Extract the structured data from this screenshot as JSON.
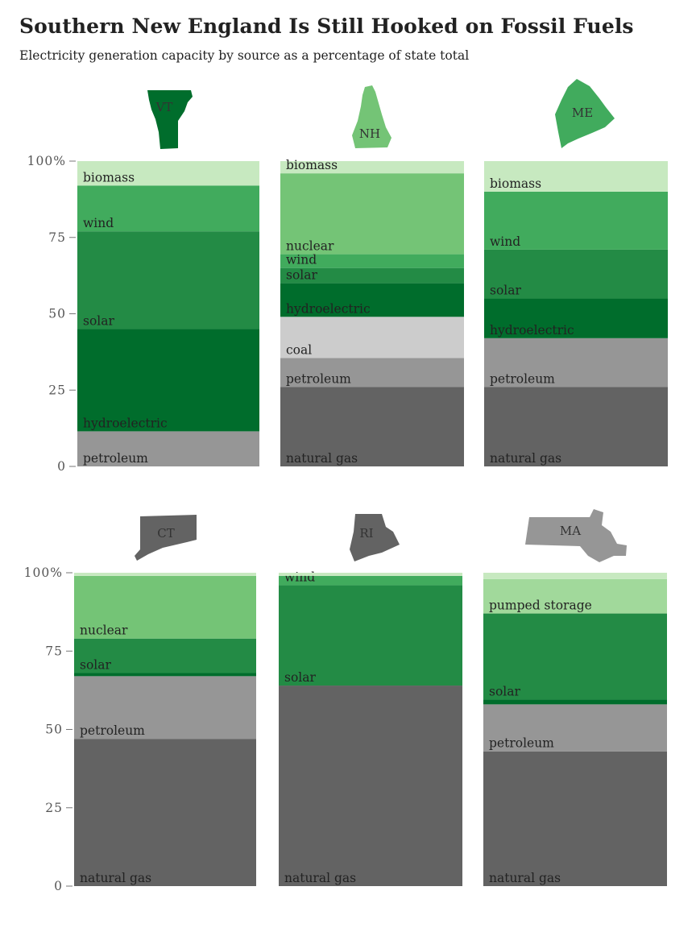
{
  "title": "Southern New England Is Still Hooked on Fossil Fuels",
  "subtitle": "Electricity generation capacity by source as a percentage of state total",
  "colors": {
    "natural gas": "#636363",
    "petroleum": "#969696",
    "coal": "#cccccc",
    "hydroelectric": "#006d2c",
    "solar": "#238b45",
    "wind": "#41ab5d",
    "nuclear": "#74c476",
    "biomass": "#c7e9c0",
    "pumped storage": "#a1d99b"
  },
  "chart_data": {
    "type": "bar",
    "stacked": true,
    "ylim": [
      0,
      100
    ],
    "yticks": [
      0,
      25,
      50,
      75,
      100
    ],
    "ytick_labels": [
      "0",
      "25",
      "50",
      "75",
      "100%"
    ],
    "panels": [
      {
        "state": "VT",
        "shape_color": "#006d2c",
        "segments": [
          {
            "source": "petroleum",
            "value": 11.5,
            "label": "petroleum"
          },
          {
            "source": "hydroelectric",
            "value": 33.5,
            "label": "hydroelectric"
          },
          {
            "source": "solar",
            "value": 32,
            "label": "solar"
          },
          {
            "source": "wind",
            "value": 15,
            "label": "wind"
          },
          {
            "source": "biomass",
            "value": 8,
            "label": "biomass"
          }
        ]
      },
      {
        "state": "NH",
        "shape_color": "#74c476",
        "segments": [
          {
            "source": "natural gas",
            "value": 26,
            "label": "natural gas"
          },
          {
            "source": "petroleum",
            "value": 9.5,
            "label": "petroleum"
          },
          {
            "source": "coal",
            "value": 13.5,
            "label": "coal"
          },
          {
            "source": "hydroelectric",
            "value": 11,
            "label": "hydroelectric"
          },
          {
            "source": "solar",
            "value": 5,
            "label": "solar"
          },
          {
            "source": "wind",
            "value": 4.5,
            "label": "wind"
          },
          {
            "source": "nuclear",
            "value": 26.5,
            "label": "nuclear"
          },
          {
            "source": "biomass",
            "value": 4,
            "label": "biomass"
          }
        ]
      },
      {
        "state": "ME",
        "shape_color": "#41ab5d",
        "segments": [
          {
            "source": "natural gas",
            "value": 26,
            "label": "natural gas"
          },
          {
            "source": "petroleum",
            "value": 16,
            "label": "petroleum"
          },
          {
            "source": "hydroelectric",
            "value": 13,
            "label": "hydroelectric"
          },
          {
            "source": "solar",
            "value": 16,
            "label": "solar"
          },
          {
            "source": "wind",
            "value": 19,
            "label": "wind"
          },
          {
            "source": "biomass",
            "value": 10,
            "label": "biomass"
          }
        ]
      },
      {
        "state": "CT",
        "shape_color": "#636363",
        "segments": [
          {
            "source": "natural gas",
            "value": 47,
            "label": "natural gas"
          },
          {
            "source": "petroleum",
            "value": 20,
            "label": "petroleum"
          },
          {
            "source": "hydroelectric",
            "value": 1,
            "label": ""
          },
          {
            "source": "solar",
            "value": 11,
            "label": "solar"
          },
          {
            "source": "nuclear",
            "value": 20,
            "label": "nuclear"
          },
          {
            "source": "biomass",
            "value": 1,
            "label": ""
          }
        ]
      },
      {
        "state": "RI",
        "shape_color": "#636363",
        "segments": [
          {
            "source": "natural gas",
            "value": 64,
            "label": "natural gas"
          },
          {
            "source": "solar",
            "value": 32,
            "label": "solar"
          },
          {
            "source": "wind",
            "value": 3,
            "label": "wind"
          },
          {
            "source": "biomass",
            "value": 1,
            "label": ""
          }
        ]
      },
      {
        "state": "MA",
        "shape_color": "#969696",
        "segments": [
          {
            "source": "natural gas",
            "value": 43,
            "label": "natural gas"
          },
          {
            "source": "petroleum",
            "value": 15,
            "label": "petroleum"
          },
          {
            "source": "hydroelectric",
            "value": 1.5,
            "label": ""
          },
          {
            "source": "solar",
            "value": 27.5,
            "label": "solar"
          },
          {
            "source": "pumped storage",
            "value": 11,
            "label": "pumped storage"
          },
          {
            "source": "biomass",
            "value": 2,
            "label": ""
          }
        ]
      }
    ]
  }
}
